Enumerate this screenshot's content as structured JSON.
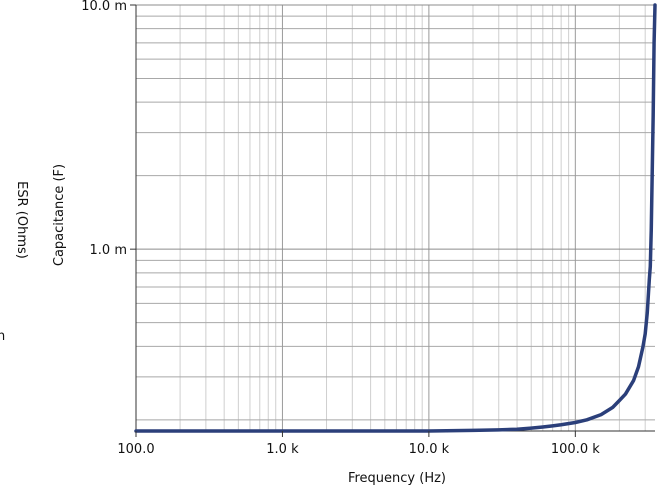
{
  "chart_data": {
    "type": "line",
    "xlabel": "Frequency (Hz)",
    "ylabel": "Capacitance (F)",
    "secondary_ylabel": "ESR (Ohms)",
    "secondary_partial_tick": "n",
    "x_scale": "log",
    "y_scale": "log",
    "xlim": [
      100,
      350000
    ],
    "ylim": [
      0.00018,
      0.01
    ],
    "x_ticks": [
      {
        "value": 100,
        "label": "100.0"
      },
      {
        "value": 1000,
        "label": "1.0 k"
      },
      {
        "value": 10000,
        "label": "10.0 k"
      },
      {
        "value": 100000,
        "label": "100.0 k"
      }
    ],
    "y_ticks": [
      {
        "value": 0.001,
        "label": "1.0 m"
      },
      {
        "value": 0.01,
        "label": "10.0 m"
      }
    ],
    "grid": true,
    "line_color": "#2b3f7a",
    "series": [
      {
        "x": [
          100,
          1000,
          10000,
          20000,
          30000,
          40000,
          50000,
          60000,
          70000,
          80000,
          100000,
          120000,
          150000,
          180000,
          200000,
          220000,
          250000,
          270000,
          290000,
          300000,
          310000,
          320000,
          325000,
          330000,
          340000,
          345000,
          350000
        ],
        "y": [
          0.00018,
          0.00018,
          0.00018,
          0.000181,
          0.000182,
          0.000183,
          0.000185,
          0.000187,
          0.000189,
          0.000191,
          0.000195,
          0.0002,
          0.00021,
          0.000225,
          0.00024,
          0.000255,
          0.00029,
          0.00033,
          0.0004,
          0.00045,
          0.00055,
          0.00075,
          0.00085,
          0.0012,
          0.0035,
          0.007,
          0.01
        ]
      }
    ]
  }
}
